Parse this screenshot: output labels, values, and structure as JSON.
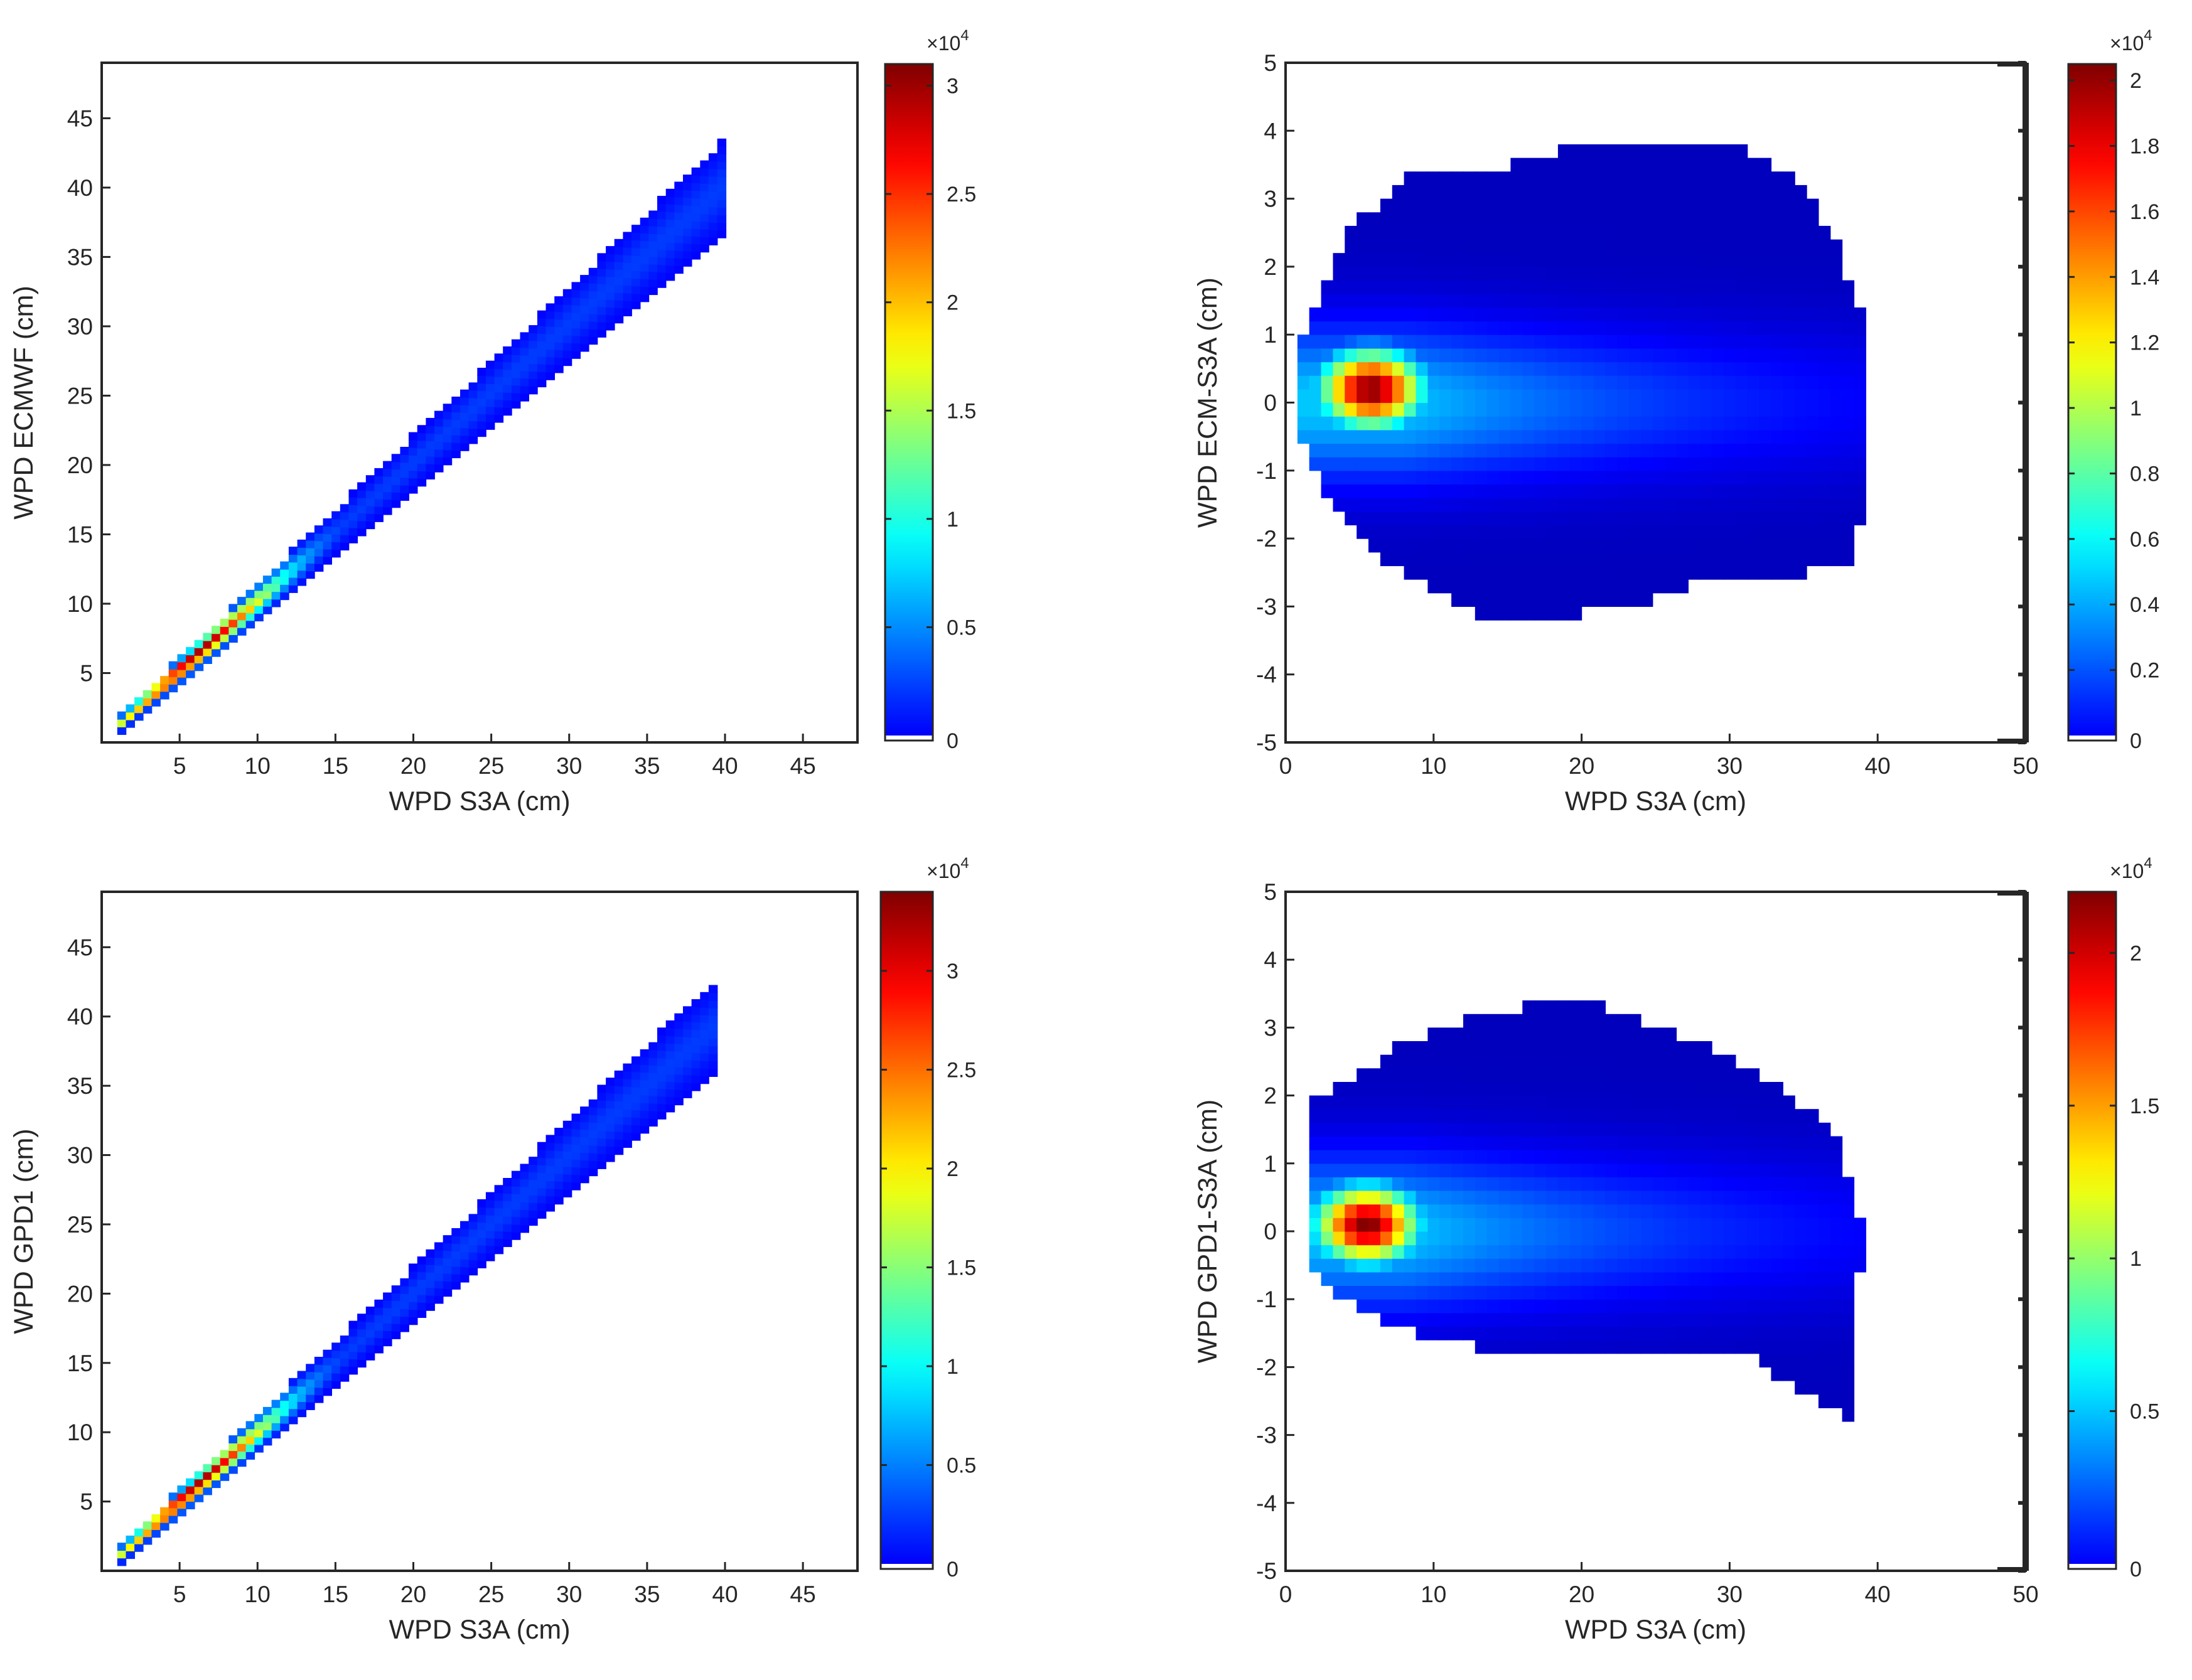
{
  "figure": {
    "background": "#ffffff",
    "frame_color": "#262626"
  },
  "chart_data": [
    {
      "id": "p1",
      "type": "heatmap",
      "subtype": "density_diagonal",
      "xlabel": "WPD S3A (cm)",
      "ylabel": "WPD ECMWF (cm)",
      "xlim": [
        0,
        48.5
      ],
      "ylim": [
        0,
        49
      ],
      "xticks": [
        5,
        10,
        15,
        20,
        25,
        30,
        35,
        40,
        45
      ],
      "yticks": [
        5,
        10,
        15,
        20,
        25,
        30,
        35,
        40,
        45
      ],
      "colorbar": {
        "min": 0,
        "max": 3.1,
        "ticks": [
          0,
          0.5,
          1,
          1.5,
          2,
          2.5,
          3
        ],
        "tick_labels": [
          "0",
          "0.5",
          "1",
          "1.5",
          "2",
          "2.5",
          "3"
        ],
        "multiplier_base": "×10",
        "multiplier_exp": "4"
      },
      "density": {
        "x_start": 1,
        "x_end": 39.5,
        "slope": 1.0,
        "intercept": 0.2,
        "peak_x": 5.5,
        "peak_value": 3.1
      }
    },
    {
      "id": "p2",
      "type": "heatmap",
      "subtype": "density_difference",
      "xlabel": "WPD S3A (cm)",
      "ylabel": "WPD ECM-S3A (cm)",
      "xlim": [
        0,
        50
      ],
      "ylim": [
        -5,
        5
      ],
      "xticks": [
        0,
        10,
        20,
        30,
        40,
        50
      ],
      "yticks": [
        -5,
        -4,
        -3,
        -2,
        -1,
        0,
        1,
        2,
        3,
        4,
        5
      ],
      "colorbar": {
        "min": 0,
        "max": 2.05,
        "ticks": [
          0,
          0.2,
          0.4,
          0.6,
          0.8,
          1,
          1.2,
          1.4,
          1.6,
          1.8,
          2
        ],
        "tick_labels": [
          "0",
          "0.2",
          "0.4",
          "0.6",
          "0.8",
          "1",
          "1.2",
          "1.4",
          "1.6",
          "1.8",
          "2"
        ],
        "multiplier_base": "×10",
        "multiplier_exp": "4"
      },
      "density": {
        "x_min": 1.2,
        "x_max": 39.5,
        "peak_x": 5.8,
        "peak_y": 0.2,
        "peak_value": 2.05,
        "outline": [
          [
            1.2,
            1.1
          ],
          [
            4,
            2.5
          ],
          [
            8,
            3.3
          ],
          [
            15,
            3.5
          ],
          [
            20,
            3.8
          ],
          [
            25,
            3.9
          ],
          [
            30,
            3.9
          ],
          [
            34,
            3.4
          ],
          [
            37,
            2.5
          ],
          [
            39,
            1.2
          ],
          [
            39.5,
            -0.8
          ],
          [
            38.5,
            -2.3
          ],
          [
            35,
            -2.5
          ],
          [
            30,
            -2.5
          ],
          [
            25,
            -2.9
          ],
          [
            20,
            -3.1
          ],
          [
            15,
            -3.3
          ],
          [
            10,
            -2.8
          ],
          [
            6,
            -2.2
          ],
          [
            3,
            -1.5
          ],
          [
            1.2,
            -0.6
          ]
        ]
      }
    },
    {
      "id": "p3",
      "type": "heatmap",
      "subtype": "density_diagonal",
      "xlabel": "WPD S3A (cm)",
      "ylabel": "WPD GPD1 (cm)",
      "xlim": [
        0,
        48.5
      ],
      "ylim": [
        0,
        49
      ],
      "xticks": [
        5,
        10,
        15,
        20,
        25,
        30,
        35,
        40,
        45
      ],
      "yticks": [
        5,
        10,
        15,
        20,
        25,
        30,
        35,
        40,
        45
      ],
      "colorbar": {
        "min": 0,
        "max": 3.4,
        "ticks": [
          0,
          0.5,
          1,
          1.5,
          2,
          2.5,
          3
        ],
        "tick_labels": [
          "0",
          "0.5",
          "1",
          "1.5",
          "2",
          "2.5",
          "3"
        ],
        "multiplier_base": "×10",
        "multiplier_exp": "4"
      },
      "density": {
        "x_start": 1,
        "x_end": 39,
        "slope": 1.0,
        "intercept": 0.0,
        "peak_x": 5.5,
        "peak_value": 3.4
      }
    },
    {
      "id": "p4",
      "type": "heatmap",
      "subtype": "density_difference",
      "xlabel": "WPD S3A (cm)",
      "ylabel": "WPD GPD1-S3A (cm)",
      "xlim": [
        0,
        50
      ],
      "ylim": [
        -5,
        5
      ],
      "xticks": [
        0,
        10,
        20,
        30,
        40,
        50
      ],
      "yticks": [
        -5,
        -4,
        -3,
        -2,
        -1,
        0,
        1,
        2,
        3,
        4,
        5
      ],
      "colorbar": {
        "min": 0,
        "max": 2.2,
        "ticks": [
          0,
          0.5,
          1,
          1.5,
          2
        ],
        "tick_labels": [
          "0",
          "0.5",
          "1",
          "1.5",
          "2"
        ],
        "multiplier_base": "×10",
        "multiplier_exp": "4"
      },
      "density": {
        "x_min": 1.5,
        "x_max": 39,
        "peak_x": 5.5,
        "peak_y": 0.1,
        "peak_value": 2.2,
        "outline": [
          [
            1.5,
            1.9
          ],
          [
            4,
            2.2
          ],
          [
            8,
            2.8
          ],
          [
            12,
            3.1
          ],
          [
            18,
            3.4
          ],
          [
            22,
            3.3
          ],
          [
            28,
            2.8
          ],
          [
            33,
            2.2
          ],
          [
            37,
            1.5
          ],
          [
            39,
            0.0
          ],
          [
            38.5,
            -1.5
          ],
          [
            38,
            -2.8
          ],
          [
            35,
            -2.4
          ],
          [
            32,
            -1.9
          ],
          [
            25,
            -1.8
          ],
          [
            20,
            -1.8
          ],
          [
            15,
            -1.8
          ],
          [
            10,
            -1.6
          ],
          [
            5,
            -1.2
          ],
          [
            3,
            -0.8
          ],
          [
            1.5,
            -0.4
          ]
        ]
      }
    }
  ]
}
